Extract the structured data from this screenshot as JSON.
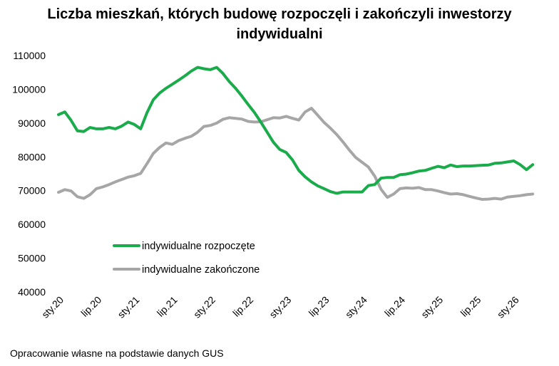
{
  "chart_data": {
    "type": "line",
    "title_line1": "Liczba mieszkań, których budowę rozpoczęli i zakończyli inwestorzy",
    "title_line2": "indywidualni",
    "xlabel": "",
    "ylabel": "",
    "ylim": [
      40000,
      110000
    ],
    "yticks": [
      "40000",
      "50000",
      "60000",
      "70000",
      "80000",
      "90000",
      "100000",
      "110000"
    ],
    "xtick_labels": [
      "sty.20",
      "lip.20",
      "sty.21",
      "lip.21",
      "sty.22",
      "lip.22",
      "sty.23",
      "lip.23",
      "sty.24",
      "lip.24",
      "sty.25",
      "lip.25",
      "sty.26"
    ],
    "grid": false,
    "legend_placement": "lower-left",
    "series": [
      {
        "name": "indywidualne rozpoczęte",
        "color": "#1aab4b",
        "values": [
          92500,
          93300,
          90800,
          87700,
          87500,
          88700,
          88300,
          88300,
          88700,
          88300,
          89100,
          90300,
          89600,
          88300,
          93100,
          96900,
          98900,
          100300,
          101500,
          102700,
          104000,
          105400,
          106500,
          106100,
          105800,
          106500,
          104700,
          102300,
          100300,
          98000,
          95500,
          93100,
          90300,
          87300,
          84300,
          82200,
          81300,
          79100,
          76000,
          74100,
          72600,
          71400,
          70600,
          69700,
          69200,
          69600,
          69600,
          69600,
          69600,
          71500,
          71800,
          73700,
          73900,
          73900,
          74700,
          74900,
          75300,
          75800,
          76000,
          76600,
          77200,
          76800,
          77600,
          77100,
          77300,
          77300,
          77400,
          77500,
          77600,
          78100,
          78200,
          78500,
          78800,
          77700,
          76200,
          77700
        ]
      },
      {
        "name": "indywidualne zakończone",
        "color": "#a6a6a6",
        "values": [
          69500,
          70300,
          69900,
          68200,
          67700,
          68800,
          70600,
          71100,
          71800,
          72600,
          73300,
          74000,
          74400,
          75100,
          78000,
          81000,
          82800,
          84100,
          83700,
          84800,
          85500,
          86100,
          87300,
          89000,
          89300,
          90000,
          91100,
          91600,
          91400,
          91200,
          90500,
          90300,
          90400,
          91000,
          91600,
          91500,
          92000,
          91400,
          90900,
          93300,
          94400,
          92300,
          90200,
          88500,
          86600,
          84400,
          82000,
          79800,
          78400,
          77000,
          74300,
          70400,
          68000,
          69000,
          70600,
          70800,
          70700,
          70900,
          70300,
          70300,
          69900,
          69400,
          69000,
          69100,
          68800,
          68300,
          67800,
          67400,
          67500,
          67700,
          67500,
          68100,
          68300,
          68500,
          68800,
          69000
        ]
      }
    ]
  },
  "footer": "Opracowanie własne na podstawie danych GUS"
}
